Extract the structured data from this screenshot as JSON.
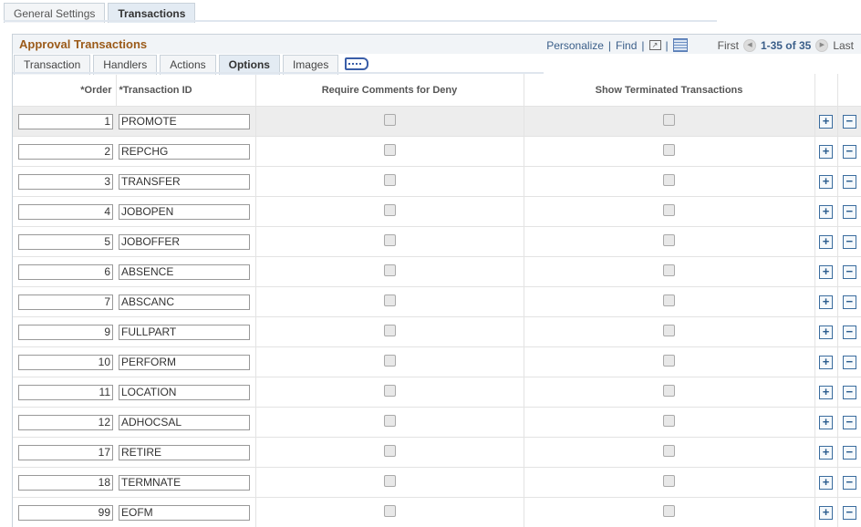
{
  "top_tabs": [
    "General Settings",
    "Transactions"
  ],
  "grid": {
    "title": "Approval Transactions",
    "personalize": "Personalize",
    "find": "Find",
    "first": "First",
    "range": "1-35 of 35",
    "last": "Last"
  },
  "sub_tabs": [
    "Transaction",
    "Handlers",
    "Actions",
    "Options",
    "Images"
  ],
  "columns": [
    "*Order",
    "*Transaction ID",
    "Require Comments for Deny",
    "Show Terminated Transactions"
  ],
  "rows": [
    {
      "order": "1",
      "id": "PROMOTE"
    },
    {
      "order": "2",
      "id": "REPCHG"
    },
    {
      "order": "3",
      "id": "TRANSFER"
    },
    {
      "order": "4",
      "id": "JOBOPEN"
    },
    {
      "order": "5",
      "id": "JOBOFFER"
    },
    {
      "order": "6",
      "id": "ABSENCE"
    },
    {
      "order": "7",
      "id": "ABSCANC"
    },
    {
      "order": "9",
      "id": "FULLPART"
    },
    {
      "order": "10",
      "id": "PERFORM"
    },
    {
      "order": "11",
      "id": "LOCATION"
    },
    {
      "order": "12",
      "id": "ADHOCSAL"
    },
    {
      "order": "17",
      "id": "RETIRE"
    },
    {
      "order": "18",
      "id": "TERMNATE"
    },
    {
      "order": "99",
      "id": "EOFM"
    }
  ]
}
